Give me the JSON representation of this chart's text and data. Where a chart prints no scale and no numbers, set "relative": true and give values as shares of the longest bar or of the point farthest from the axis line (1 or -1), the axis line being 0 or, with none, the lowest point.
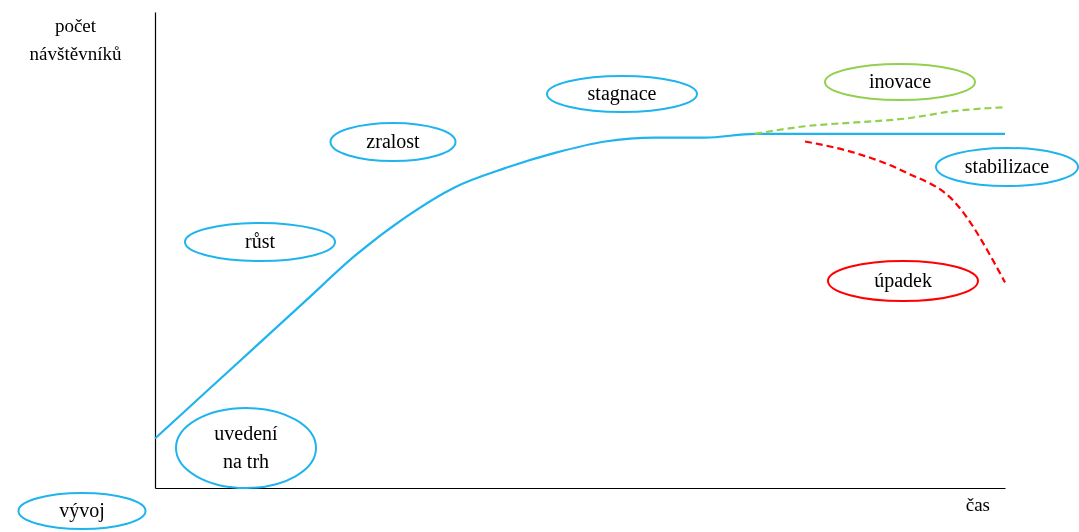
{
  "chart_data": {
    "type": "line",
    "relative": true,
    "xlabel": "čas",
    "ylabel": "počet návštěvníků",
    "categories": [
      null,
      null,
      null,
      null,
      null,
      null,
      null,
      null,
      null,
      null,
      null,
      null,
      null,
      null,
      null,
      null,
      null,
      null
    ],
    "series": [
      {
        "color": "#1fb4ee",
        "line_style": "solid",
        "values": [
          0.13,
          0.25,
          0.37,
          0.49,
          0.61,
          0.71,
          0.79,
          0.84,
          0.88,
          0.91,
          0.92,
          0.92,
          0.93,
          0.93,
          0.93,
          0.93,
          0.93,
          0.93
        ]
      },
      {
        "color": "#92d050",
        "line_style": "dashed",
        "values": [
          null,
          null,
          null,
          null,
          null,
          null,
          null,
          null,
          null,
          null,
          null,
          null,
          0.93,
          0.95,
          0.96,
          0.97,
          0.99,
          1.0
        ]
      },
      {
        "color": "#ff0000",
        "line_style": "dashed",
        "values": [
          null,
          null,
          null,
          null,
          null,
          null,
          null,
          null,
          null,
          null,
          null,
          null,
          null,
          0.91,
          0.88,
          0.83,
          0.75,
          0.54
        ]
      }
    ],
    "annotations": [
      "uvedení na trh",
      "růst",
      "zralost",
      "stagnace",
      "inovace",
      "stabilizace",
      "úpadek",
      "vývoj"
    ],
    "grid": false,
    "marker": "none"
  }
}
